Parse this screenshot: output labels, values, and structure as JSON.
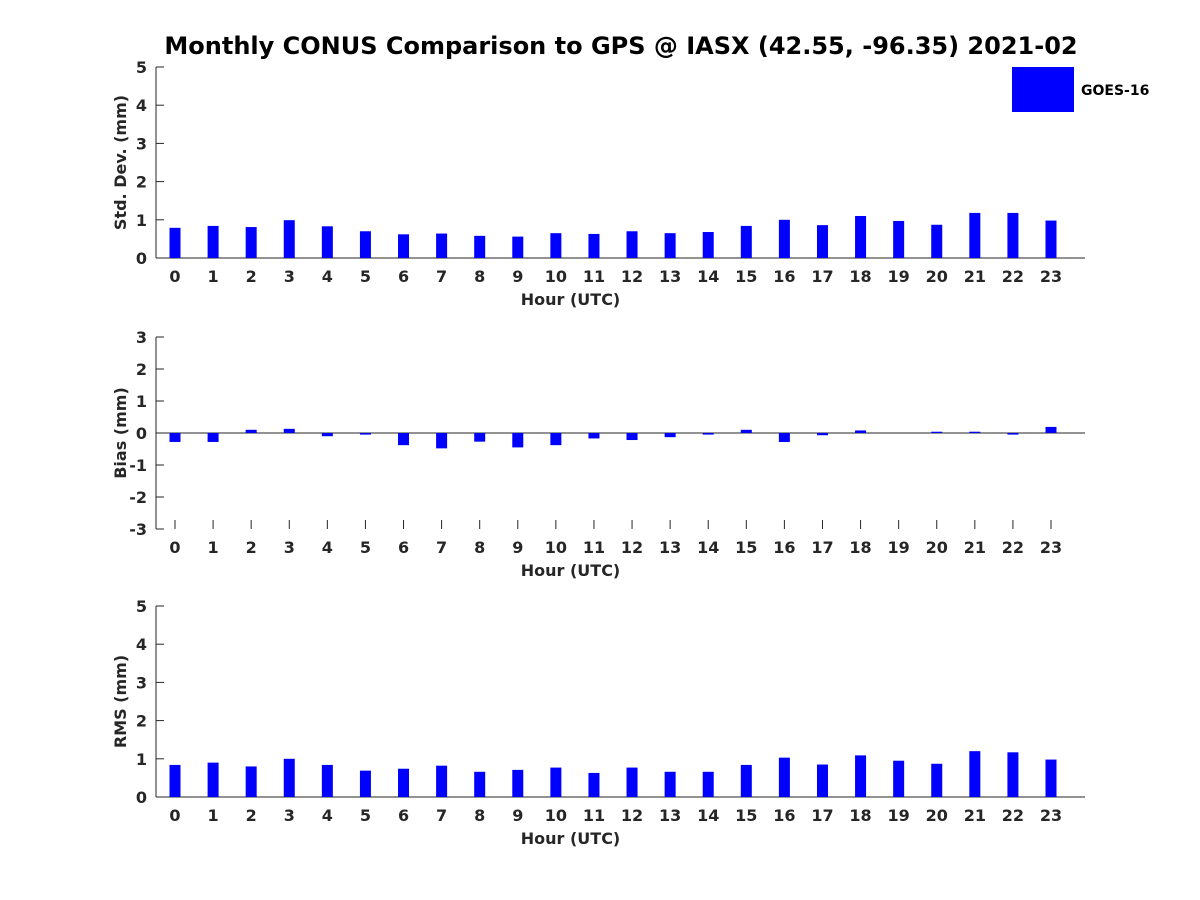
{
  "chart_data": {
    "title": "Monthly CONUS Comparison to GPS @ IASX (42.55, -96.35) 2021-02",
    "colors": {
      "series": "#0000ff",
      "axis": "#262626",
      "background": "#ffffff"
    },
    "legend": {
      "position": "top-right",
      "entries": [
        "GOES-16"
      ]
    },
    "panels": [
      {
        "type": "bar",
        "ylabel": "Std. Dev. (mm)",
        "xlabel": "Hour (UTC)",
        "ylim": [
          0,
          5
        ],
        "yticks": [
          "0",
          "1",
          "2",
          "3",
          "4",
          "5"
        ],
        "categories": [
          "0",
          "1",
          "2",
          "3",
          "4",
          "5",
          "6",
          "7",
          "8",
          "9",
          "10",
          "11",
          "12",
          "13",
          "14",
          "15",
          "16",
          "17",
          "18",
          "19",
          "20",
          "21",
          "22",
          "23"
        ],
        "series": [
          {
            "name": "GOES-16",
            "values": [
              0.79,
              0.84,
              0.81,
              0.99,
              0.83,
              0.7,
              0.62,
              0.64,
              0.58,
              0.56,
              0.65,
              0.63,
              0.7,
              0.65,
              0.68,
              0.84,
              1.0,
              0.86,
              1.1,
              0.97,
              0.87,
              1.18,
              1.18,
              0.98
            ]
          }
        ]
      },
      {
        "type": "bar",
        "ylabel": "Bias (mm)",
        "xlabel": "Hour (UTC)",
        "ylim": [
          -3,
          3
        ],
        "yticks": [
          "-3",
          "-2",
          "-1",
          "0",
          "1",
          "2",
          "3"
        ],
        "categories": [
          "0",
          "1",
          "2",
          "3",
          "4",
          "5",
          "6",
          "7",
          "8",
          "9",
          "10",
          "11",
          "12",
          "13",
          "14",
          "15",
          "16",
          "17",
          "18",
          "19",
          "20",
          "21",
          "22",
          "23"
        ],
        "series": [
          {
            "name": "GOES-16",
            "values": [
              -0.28,
              -0.28,
              0.1,
              0.13,
              -0.1,
              -0.05,
              -0.38,
              -0.48,
              -0.27,
              -0.45,
              -0.38,
              -0.17,
              -0.22,
              -0.13,
              -0.05,
              0.1,
              -0.28,
              -0.07,
              0.08,
              0.0,
              0.04,
              0.04,
              -0.05,
              0.19
            ]
          }
        ]
      },
      {
        "type": "bar",
        "ylabel": "RMS (mm)",
        "xlabel": "Hour (UTC)",
        "ylim": [
          0,
          5
        ],
        "yticks": [
          "0",
          "1",
          "2",
          "3",
          "4",
          "5"
        ],
        "categories": [
          "0",
          "1",
          "2",
          "3",
          "4",
          "5",
          "6",
          "7",
          "8",
          "9",
          "10",
          "11",
          "12",
          "13",
          "14",
          "15",
          "16",
          "17",
          "18",
          "19",
          "20",
          "21",
          "22",
          "23"
        ],
        "series": [
          {
            "name": "GOES-16",
            "values": [
              0.84,
              0.9,
              0.8,
              1.0,
              0.84,
              0.69,
              0.74,
              0.82,
              0.66,
              0.71,
              0.77,
              0.63,
              0.77,
              0.66,
              0.66,
              0.84,
              1.03,
              0.85,
              1.09,
              0.95,
              0.87,
              1.2,
              1.17,
              0.98
            ]
          }
        ]
      }
    ]
  }
}
